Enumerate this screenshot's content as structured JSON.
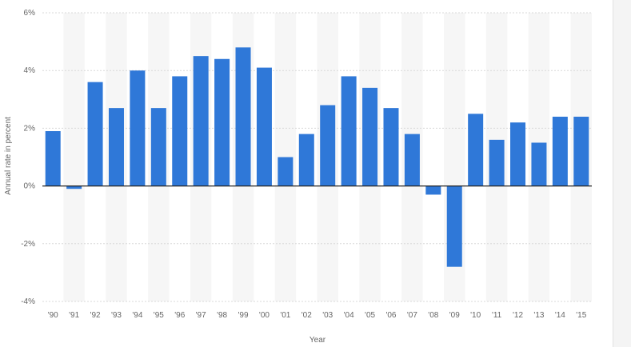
{
  "chart_data": {
    "type": "bar",
    "title": "",
    "xlabel": "Year",
    "ylabel": "Annual rate in percent",
    "categories": [
      "'90",
      "'91",
      "'92",
      "'93",
      "'94",
      "'95",
      "'96",
      "'97",
      "'98",
      "'99",
      "'00",
      "'01",
      "'02",
      "'03",
      "'04",
      "'05",
      "'06",
      "'07",
      "'08",
      "'09",
      "'10",
      "'11",
      "'12",
      "'13",
      "'14",
      "'15"
    ],
    "values": [
      1.9,
      -0.1,
      3.6,
      2.7,
      4.0,
      2.7,
      3.8,
      4.5,
      4.4,
      4.8,
      4.1,
      1.0,
      1.8,
      2.8,
      3.8,
      3.4,
      2.7,
      1.8,
      -0.3,
      -2.8,
      2.5,
      1.6,
      2.2,
      1.5,
      2.4,
      2.4
    ],
    "ylim": [
      -4,
      6
    ],
    "yticks": [
      6,
      4,
      2,
      0,
      -2,
      -4
    ],
    "ytick_labels": [
      "6%",
      "4%",
      "2%",
      "0%",
      "-2%",
      "-4%"
    ],
    "grid": true,
    "legend": "none",
    "bar_color": "#2f78d8",
    "stripe_color": "#f6f6f6",
    "grid_color": "#d8d8d8",
    "zero_line_color": "#222222"
  }
}
